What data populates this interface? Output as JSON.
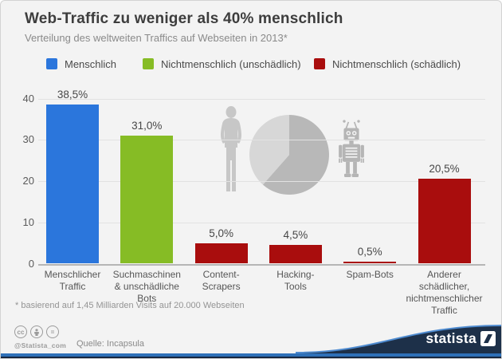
{
  "header": {
    "title": "Web-Traffic zu weniger als 40% menschlich",
    "subtitle": "Verteilung des weltweiten Traffics auf Webseiten in 2013*"
  },
  "legend": [
    {
      "label": "Menschlich",
      "color": "#2B76DC"
    },
    {
      "label": "Nichtmenschlich (unschädlich)",
      "color": "#86BC25"
    },
    {
      "label": "Nichtmenschlich (schädlich)",
      "color": "#A90D0D"
    }
  ],
  "chart_data": {
    "type": "bar",
    "title": "Web-Traffic zu weniger als 40% menschlich",
    "categories": [
      [
        "Menschlicher",
        "Traffic"
      ],
      [
        "Suchmaschinen",
        "& unschädliche Bots"
      ],
      [
        "Content-",
        "Scrapers"
      ],
      [
        "Hacking-",
        "Tools"
      ],
      [
        "Spam-Bots"
      ],
      [
        "Anderer",
        "schädlicher,",
        "nichtmenschlicher",
        "Traffic"
      ]
    ],
    "values": [
      38.5,
      31.0,
      5.0,
      4.5,
      0.5,
      20.5
    ],
    "value_labels": [
      "38,5%",
      "31,0%",
      "5,0%",
      "4,5%",
      "0,5%",
      "20,5%"
    ],
    "bar_colors": [
      "#2B76DC",
      "#86BC25",
      "#A90D0D",
      "#A90D0D",
      "#A90D0D",
      "#A90D0D"
    ],
    "xlabel": "",
    "ylabel": "",
    "ylim": [
      0,
      40
    ],
    "yticks": [
      0,
      10,
      20,
      30,
      40
    ],
    "grid": true,
    "legend_position": "top",
    "unit": "%",
    "pie_decoration": {
      "dark_share": 61.5,
      "light_share": 38.5
    }
  },
  "footnote": "* basierend auf 1,45 Milliarden Visits auf 20.000 Webseiten",
  "footer": {
    "handle": "@Statista_com",
    "source": "Quelle: Incapsula",
    "brand": "statista",
    "license_icons": [
      "cc-icon",
      "attribution-icon",
      "nd-icon"
    ],
    "cc_text": "cc",
    "nd_text": "="
  },
  "colors": {
    "background": "#f3f3f3",
    "footer_navy": "#1D3049",
    "footer_blue": "#2E70B8",
    "swoosh_highlight": "#4E8BD0",
    "pie_dark": "#b8b8b8",
    "pie_light": "#d7d7d7",
    "deco_gray": "#c7c7c7"
  }
}
